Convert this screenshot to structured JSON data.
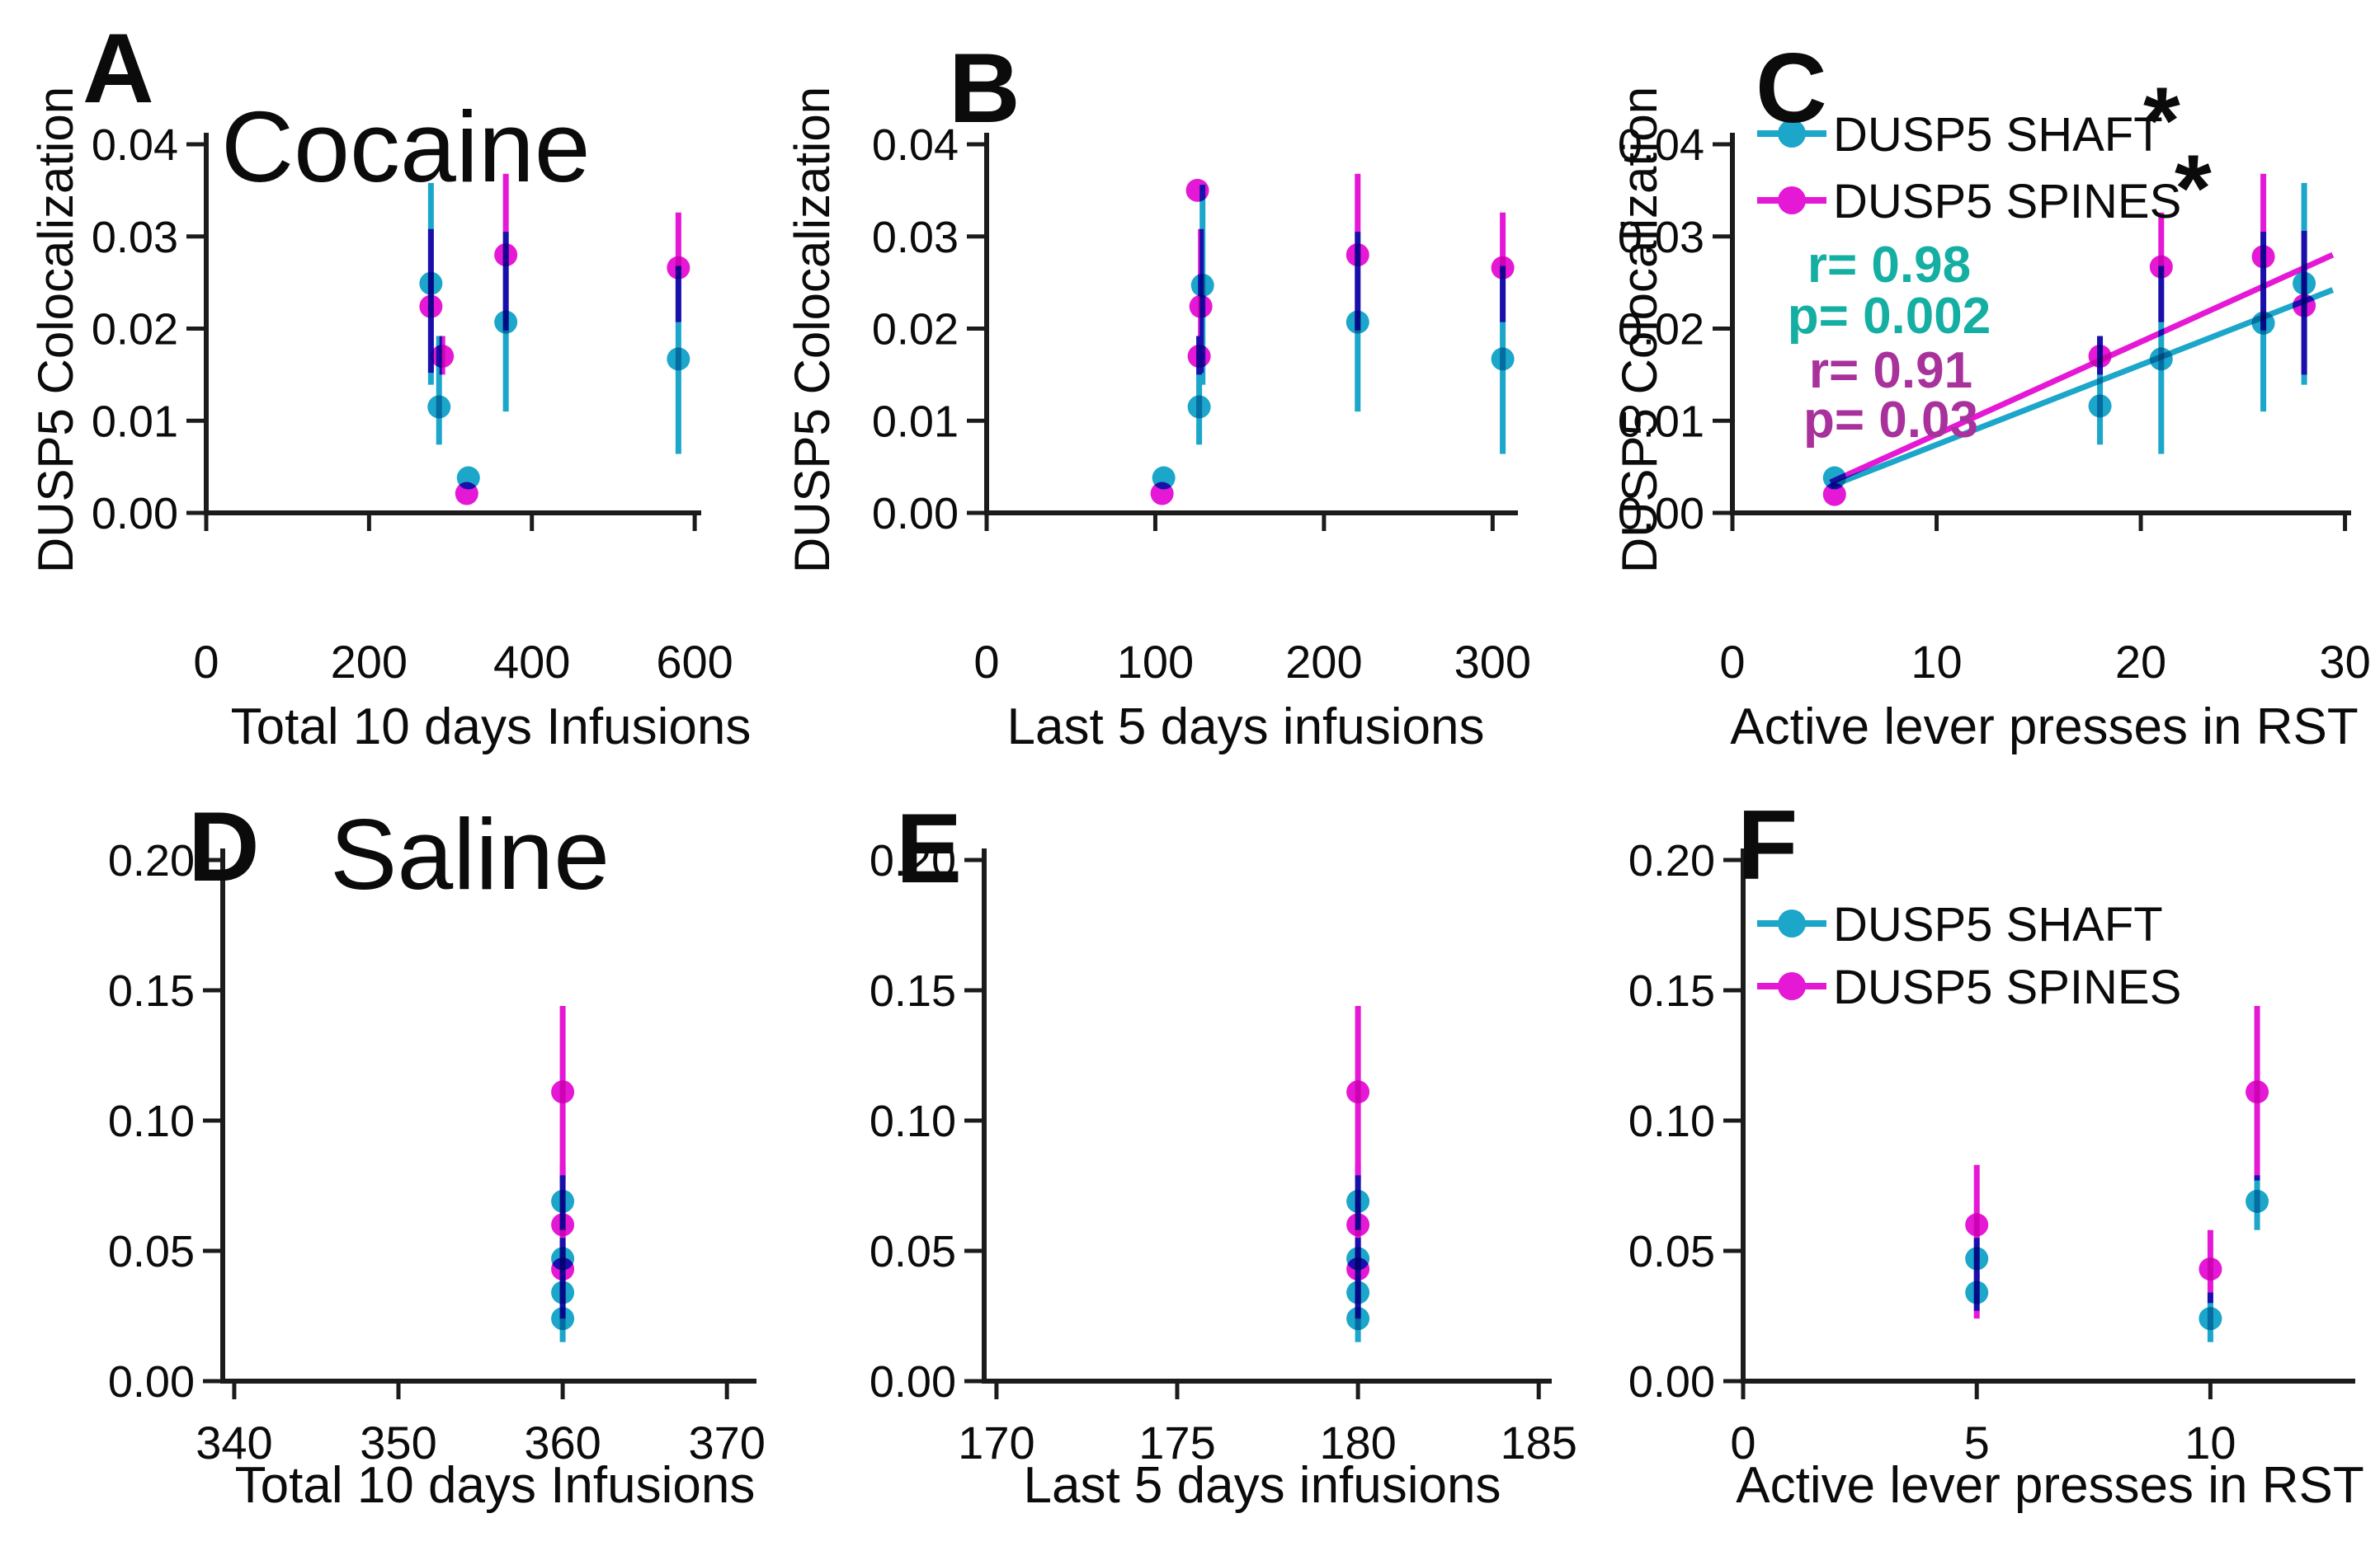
{
  "colors": {
    "shaft": "#1BA6CA",
    "spines": "#E518D6",
    "stats_teal": "#14AEA2",
    "stats_purple": "#A8319C",
    "axis": "#1b1b1b"
  },
  "chart_data": [
    {
      "panel": "A",
      "type": "scatter",
      "title": "Cocaine",
      "xlabel": "Total 10 days Infusions",
      "ylabel": "DUSP5 Colocalization",
      "xlim": [
        0,
        608
      ],
      "ylim": [
        0,
        0.04
      ],
      "xticks": [
        0,
        200,
        400,
        600
      ],
      "xtick_labels": [
        "0",
        "200",
        "400",
        "600"
      ],
      "yticks": [
        0,
        0.01,
        0.02,
        0.03,
        0.04
      ],
      "ytick_labels": [
        "0.00",
        "0.01",
        "0.02",
        "0.03",
        "0.04"
      ],
      "grid": false,
      "px": {
        "l": 250,
        "r": 850,
        "t": 175,
        "b": 622,
        "tick_dy": 176
      },
      "series": [
        {
          "name": "DUSP5 SHAFT",
          "color": "shaft",
          "points": [
            {
              "x": 276,
              "y": 0.0249,
              "lo": 0.0139,
              "hi": 0.0358
            },
            {
              "x": 286,
              "y": 0.0115,
              "lo": 0.0074,
              "hi": 0.0192
            },
            {
              "x": 322,
              "y": 0.0038
            },
            {
              "x": 368,
              "y": 0.0207,
              "lo": 0.011,
              "hi": 0.0305
            },
            {
              "x": 580,
              "y": 0.0167,
              "lo": 0.0064,
              "hi": 0.0268
            }
          ]
        },
        {
          "name": "DUSP5 SPINES",
          "color": "spines",
          "points": [
            {
              "x": 276,
              "y": 0.0224,
              "lo": 0.0152,
              "hi": 0.0308
            },
            {
              "x": 290,
              "y": 0.017,
              "lo": 0.015,
              "hi": 0.0192
            },
            {
              "x": 320,
              "y": 0.0021
            },
            {
              "x": 368,
              "y": 0.028,
              "lo": 0.0198,
              "hi": 0.0368
            },
            {
              "x": 580,
              "y": 0.0266,
              "lo": 0.0207,
              "hi": 0.0326
            }
          ]
        }
      ]
    },
    {
      "panel": "B",
      "type": "scatter",
      "title": "",
      "xlabel": "Last 5 days infusions",
      "ylabel": "DUSP5 Colocalization",
      "xlim": [
        0,
        315
      ],
      "ylim": [
        0,
        0.04
      ],
      "xticks": [
        0,
        100,
        200,
        300
      ],
      "xtick_labels": [
        "0",
        "100",
        "200",
        "300"
      ],
      "yticks": [
        0,
        0.01,
        0.02,
        0.03,
        0.04
      ],
      "ytick_labels": [
        "0.00",
        "0.01",
        "0.02",
        "0.03",
        "0.04"
      ],
      "grid": false,
      "px": {
        "l": 1196,
        "r": 1840,
        "t": 175,
        "b": 622,
        "tick_dy": 176
      },
      "series": [
        {
          "name": "DUSP5 SHAFT",
          "color": "shaft",
          "points": [
            {
              "x": 128,
              "y": 0.0247,
              "lo": 0.0139,
              "hi": 0.0356
            },
            {
              "x": 126,
              "y": 0.0115,
              "lo": 0.0074,
              "hi": 0.0192
            },
            {
              "x": 105,
              "y": 0.0038
            },
            {
              "x": 220,
              "y": 0.0207,
              "lo": 0.011,
              "hi": 0.0305
            },
            {
              "x": 306,
              "y": 0.0167,
              "lo": 0.0064,
              "hi": 0.0268
            }
          ]
        },
        {
          "name": "DUSP5 SPINES",
          "color": "spines",
          "points": [
            {
              "x": 125,
              "y": 0.035
            },
            {
              "x": 127,
              "y": 0.0224,
              "lo": 0.0152,
              "hi": 0.0308
            },
            {
              "x": 126,
              "y": 0.017,
              "lo": 0.015,
              "hi": 0.0192
            },
            {
              "x": 104,
              "y": 0.0021
            },
            {
              "x": 220,
              "y": 0.028,
              "lo": 0.0198,
              "hi": 0.0368
            },
            {
              "x": 306,
              "y": 0.0266,
              "lo": 0.0207,
              "hi": 0.0326
            }
          ]
        }
      ]
    },
    {
      "panel": "C",
      "type": "scatter",
      "title": "",
      "xlabel": "Active lever presses in RST",
      "ylabel": "DUSP5 Colocalization",
      "xlim": [
        0,
        30.3
      ],
      "ylim": [
        0,
        0.04
      ],
      "xticks": [
        0,
        10,
        20,
        30
      ],
      "xtick_labels": [
        "0",
        "10",
        "20",
        "30"
      ],
      "yticks": [
        0,
        0.01,
        0.02,
        0.03,
        0.04
      ],
      "ytick_labels": [
        "0.00",
        "0.01",
        "0.02",
        "0.03",
        "0.04"
      ],
      "grid": false,
      "px": {
        "l": 2100,
        "r": 2850,
        "t": 175,
        "b": 622,
        "tick_dy": 176
      },
      "series": [
        {
          "name": "DUSP5 SHAFT",
          "color": "shaft",
          "points": [
            {
              "x": 28,
              "y": 0.0249,
              "lo": 0.0139,
              "hi": 0.0358
            },
            {
              "x": 18,
              "y": 0.0116,
              "lo": 0.0074,
              "hi": 0.0192
            },
            {
              "x": 5,
              "y": 0.0038
            },
            {
              "x": 26,
              "y": 0.0206,
              "lo": 0.011,
              "hi": 0.0305
            },
            {
              "x": 21,
              "y": 0.0167,
              "lo": 0.0064,
              "hi": 0.0268
            }
          ]
        },
        {
          "name": "DUSP5 SPINES",
          "color": "spines",
          "points": [
            {
              "x": 28,
              "y": 0.0225,
              "lo": 0.015,
              "hi": 0.0306
            },
            {
              "x": 18,
              "y": 0.017,
              "lo": 0.015,
              "hi": 0.0192
            },
            {
              "x": 5,
              "y": 0.002
            },
            {
              "x": 26,
              "y": 0.0278,
              "lo": 0.0198,
              "hi": 0.0368
            },
            {
              "x": 21,
              "y": 0.0267,
              "lo": 0.0207,
              "hi": 0.0326
            }
          ]
        }
      ],
      "reg_lines": [
        {
          "color": "shaft",
          "x1": 4.8,
          "y1": 0.0029,
          "x2": 29.4,
          "y2": 0.0242,
          "r": "0.98",
          "p": "0.002"
        },
        {
          "color": "spines",
          "x1": 4.8,
          "y1": 0.0033,
          "x2": 29.4,
          "y2": 0.028,
          "r": "0.91",
          "p": "0.03"
        }
      ],
      "stats": [
        {
          "text": "r= 0.98",
          "color": "stats_teal",
          "x": 2290,
          "y": 342
        },
        {
          "text": "p= 0.002",
          "color": "stats_teal",
          "x": 2290,
          "y": 404
        },
        {
          "text": "r= 0.91",
          "color": "stats_purple",
          "x": 2292,
          "y": 470
        },
        {
          "text": "p= 0.03",
          "color": "stats_purple",
          "x": 2292,
          "y": 530
        }
      ],
      "legend": {
        "items": [
          {
            "label": "DUSP5 SHAFT",
            "color": "shaft",
            "star": "*"
          },
          {
            "label": "DUSP5 SPINES",
            "color": "spines",
            "star": "*"
          }
        ],
        "px": {
          "x": 2172,
          "y1": 162,
          "y2": 243,
          "label_x": 2222,
          "star_x": [
            2598,
            2636
          ],
          "star_y": [
            186,
            268
          ]
        }
      }
    },
    {
      "panel": "D",
      "type": "scatter",
      "title": "Saline",
      "xlabel": "Total 10 days Infusions",
      "ylabel": "",
      "xlim": [
        339.3,
        371.8
      ],
      "ylim": [
        0,
        0.2
      ],
      "xticks": [
        340,
        350,
        360,
        370
      ],
      "xtick_labels": [
        "340",
        "350",
        "360",
        "370"
      ],
      "yticks": [
        0,
        0.05,
        0.1,
        0.15,
        0.2
      ],
      "ytick_labels": [
        "0.00",
        "0.05",
        "0.10",
        "0.15",
        "0.20"
      ],
      "grid": false,
      "px": {
        "l": 270,
        "r": 917,
        "t": 1043,
        "b": 1675,
        "tick_dy": 70
      },
      "series": [
        {
          "name": "DUSP5 SHAFT",
          "color": "shaft",
          "points": [
            {
              "x": 360,
              "y": 0.069,
              "lo": 0.058,
              "hi": 0.079
            },
            {
              "x": 360,
              "y": 0.047,
              "lo": 0.04,
              "hi": 0.055
            },
            {
              "x": 360,
              "y": 0.034,
              "lo": 0.027,
              "hi": 0.041
            },
            {
              "x": 360,
              "y": 0.024,
              "lo": 0.015,
              "hi": 0.034
            }
          ]
        },
        {
          "name": "DUSP5 SPINES",
          "color": "spines",
          "points": [
            {
              "x": 360,
              "y": 0.111,
              "lo": 0.077,
              "hi": 0.144
            },
            {
              "x": 360,
              "y": 0.06,
              "lo": 0.024,
              "hi": 0.083
            },
            {
              "x": 360,
              "y": 0.043,
              "lo": 0.03,
              "hi": 0.058
            }
          ]
        }
      ]
    },
    {
      "panel": "E",
      "type": "scatter",
      "title": "",
      "xlabel": "Last 5 days infusions",
      "ylabel": "",
      "xlim": [
        169.66,
        185.36
      ],
      "ylim": [
        0,
        0.2
      ],
      "xticks": [
        170,
        175,
        180,
        185
      ],
      "xtick_labels": [
        "170",
        "175",
        "180",
        "185"
      ],
      "yticks": [
        0,
        0.05,
        0.1,
        0.15,
        0.2
      ],
      "ytick_labels": [
        "0.00",
        "0.05",
        "0.10",
        "0.15",
        "0.20"
      ],
      "grid": false,
      "px": {
        "l": 1193,
        "r": 1881,
        "t": 1043,
        "b": 1675,
        "tick_dy": 70
      },
      "series": [
        {
          "name": "DUSP5 SHAFT",
          "color": "shaft",
          "points": [
            {
              "x": 180,
              "y": 0.069,
              "lo": 0.058,
              "hi": 0.079
            },
            {
              "x": 180,
              "y": 0.047,
              "lo": 0.04,
              "hi": 0.055
            },
            {
              "x": 180,
              "y": 0.034,
              "lo": 0.027,
              "hi": 0.041
            },
            {
              "x": 180,
              "y": 0.024,
              "lo": 0.015,
              "hi": 0.034
            }
          ]
        },
        {
          "name": "DUSP5 SPINES",
          "color": "spines",
          "points": [
            {
              "x": 180,
              "y": 0.111,
              "lo": 0.077,
              "hi": 0.144
            },
            {
              "x": 180,
              "y": 0.06,
              "lo": 0.024,
              "hi": 0.083
            },
            {
              "x": 180,
              "y": 0.043,
              "lo": 0.03,
              "hi": 0.058
            }
          ]
        }
      ]
    },
    {
      "panel": "F",
      "type": "scatter",
      "title": "",
      "xlabel": "Active lever presses in RST",
      "ylabel": "",
      "xlim": [
        0,
        13.1
      ],
      "ylim": [
        0,
        0.2
      ],
      "xticks": [
        0,
        5,
        10
      ],
      "xtick_labels": [
        "0",
        "5",
        "10"
      ],
      "yticks": [
        0,
        0.05,
        0.1,
        0.15,
        0.2
      ],
      "ytick_labels": [
        "0.00",
        "0.05",
        "0.10",
        "0.15",
        "0.20"
      ],
      "grid": false,
      "px": {
        "l": 2113,
        "r": 2855,
        "t": 1043,
        "b": 1675,
        "tick_dy": 70
      },
      "series": [
        {
          "name": "DUSP5 SHAFT",
          "color": "shaft",
          "points": [
            {
              "x": 5,
              "y": 0.047,
              "lo": 0.04,
              "hi": 0.055
            },
            {
              "x": 5,
              "y": 0.034,
              "lo": 0.027,
              "hi": 0.041
            },
            {
              "x": 10,
              "y": 0.024,
              "lo": 0.015,
              "hi": 0.034
            },
            {
              "x": 11,
              "y": 0.069,
              "lo": 0.058,
              "hi": 0.079
            }
          ]
        },
        {
          "name": "DUSP5 SPINES",
          "color": "spines",
          "points": [
            {
              "x": 5,
              "y": 0.06,
              "lo": 0.024,
              "hi": 0.083
            },
            {
              "x": 10,
              "y": 0.043,
              "lo": 0.03,
              "hi": 0.058
            },
            {
              "x": 11,
              "y": 0.111,
              "lo": 0.077,
              "hi": 0.144
            }
          ]
        }
      ],
      "legend": {
        "items": [
          {
            "label": "DUSP5 SHAFT",
            "color": "shaft"
          },
          {
            "label": "DUSP5 SPINES",
            "color": "spines"
          }
        ],
        "px": {
          "x": 2172,
          "y1": 1120,
          "y2": 1196,
          "label_x": 2222
        }
      }
    }
  ]
}
